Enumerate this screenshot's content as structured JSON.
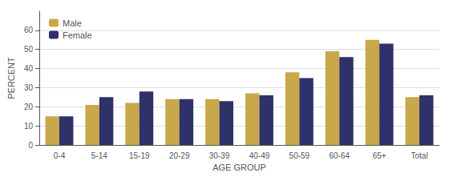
{
  "chart_data": {
    "type": "bar",
    "categories": [
      "0-4",
      "5-14",
      "15-19",
      "20-29",
      "30-39",
      "40-49",
      "50-59",
      "60-64",
      "65+",
      "Total"
    ],
    "series": [
      {
        "name": "Male",
        "color": "#C9A84C",
        "values": [
          15,
          21,
          22,
          24,
          24,
          27,
          38,
          49,
          55,
          25
        ]
      },
      {
        "name": "Female",
        "color": "#2E3268",
        "values": [
          15,
          25,
          28,
          24,
          23,
          26,
          35,
          46,
          53,
          26
        ]
      }
    ],
    "xlabel": "AGE GROUP",
    "ylabel": "PERCENT",
    "ylim": [
      0,
      70
    ],
    "yticks": [
      0,
      10,
      20,
      30,
      40,
      50,
      60
    ],
    "grid": true,
    "legend": "upper left"
  }
}
